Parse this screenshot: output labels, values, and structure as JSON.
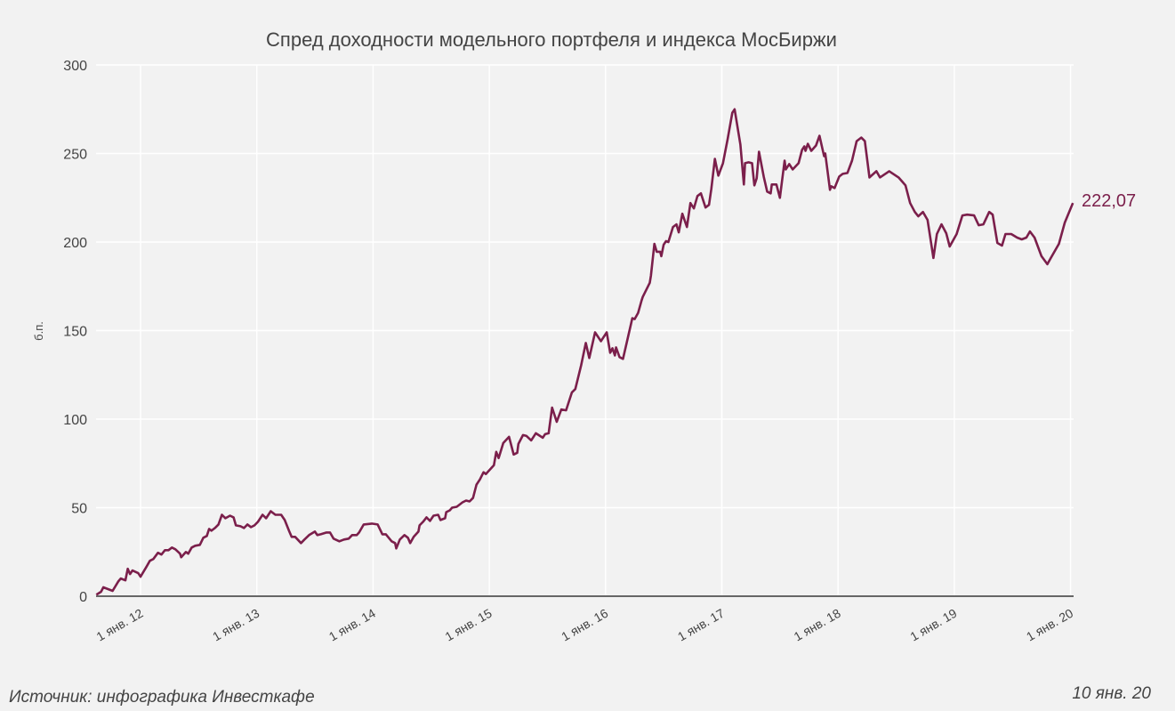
{
  "chart_data": {
    "type": "line",
    "title": "Спред доходности модельного портфеля и индекса МосБиржи",
    "xlabel": "",
    "ylabel": "б.п.",
    "ylim": [
      0,
      300
    ],
    "xlim": [
      2011.62,
      2020.02
    ],
    "yticks": [
      0,
      50,
      100,
      150,
      200,
      250,
      300
    ],
    "xticks": [
      {
        "value": 2012,
        "label": "1 янв. 12"
      },
      {
        "value": 2013,
        "label": "1 янв. 13"
      },
      {
        "value": 2014,
        "label": "1 янв. 14"
      },
      {
        "value": 2015,
        "label": "1 янв. 15"
      },
      {
        "value": 2016,
        "label": "1 янв. 16"
      },
      {
        "value": 2017,
        "label": "1 янв. 17"
      },
      {
        "value": 2018,
        "label": "1 янв. 18"
      },
      {
        "value": 2019,
        "label": "1 янв. 19"
      },
      {
        "value": 2020,
        "label": "1 янв. 20"
      }
    ],
    "grid": true,
    "series": [
      {
        "name": "Спред",
        "color": "#7b1f4b",
        "points": [
          [
            2011.62,
            0.8
          ],
          [
            2011.66,
            2.5
          ],
          [
            2011.68,
            5
          ],
          [
            2011.72,
            4
          ],
          [
            2011.76,
            3
          ],
          [
            2011.81,
            8.5
          ],
          [
            2011.83,
            10
          ],
          [
            2011.87,
            9
          ],
          [
            2011.89,
            15.5
          ],
          [
            2011.91,
            12.5
          ],
          [
            2011.93,
            14.5
          ],
          [
            2011.98,
            13
          ],
          [
            2012.0,
            11
          ],
          [
            2012.05,
            16.5
          ],
          [
            2012.08,
            20
          ],
          [
            2012.11,
            21
          ],
          [
            2012.15,
            24.5
          ],
          [
            2012.18,
            23.5
          ],
          [
            2012.21,
            26
          ],
          [
            2012.24,
            26
          ],
          [
            2012.27,
            27.5
          ],
          [
            2012.3,
            26.5
          ],
          [
            2012.34,
            24
          ],
          [
            2012.35,
            22
          ],
          [
            2012.39,
            25
          ],
          [
            2012.41,
            24
          ],
          [
            2012.44,
            27.5
          ],
          [
            2012.47,
            28.5
          ],
          [
            2012.51,
            29
          ],
          [
            2012.54,
            33
          ],
          [
            2012.57,
            34
          ],
          [
            2012.59,
            38
          ],
          [
            2012.61,
            37
          ],
          [
            2012.64,
            38.5
          ],
          [
            2012.67,
            40.5
          ],
          [
            2012.7,
            46
          ],
          [
            2012.73,
            44
          ],
          [
            2012.77,
            45.5
          ],
          [
            2012.8,
            44.5
          ],
          [
            2012.82,
            40
          ],
          [
            2012.86,
            39.5
          ],
          [
            2012.89,
            38.5
          ],
          [
            2012.92,
            40.5
          ],
          [
            2012.95,
            39
          ],
          [
            2012.98,
            40
          ],
          [
            2013.01,
            42
          ],
          [
            2013.05,
            46
          ],
          [
            2013.08,
            44
          ],
          [
            2013.12,
            48
          ],
          [
            2013.16,
            46
          ],
          [
            2013.21,
            46
          ],
          [
            2013.24,
            43
          ],
          [
            2013.28,
            36.5
          ],
          [
            2013.3,
            33.5
          ],
          [
            2013.33,
            33.5
          ],
          [
            2013.38,
            30
          ],
          [
            2013.41,
            32
          ],
          [
            2013.45,
            34.5
          ],
          [
            2013.5,
            36.5
          ],
          [
            2013.52,
            34.5
          ],
          [
            2013.55,
            35
          ],
          [
            2013.6,
            36
          ],
          [
            2013.63,
            36
          ],
          [
            2013.66,
            32.5
          ],
          [
            2013.71,
            31
          ],
          [
            2013.75,
            32
          ],
          [
            2013.79,
            32.5
          ],
          [
            2013.82,
            34.5
          ],
          [
            2013.86,
            34.5
          ],
          [
            2013.88,
            36
          ],
          [
            2013.92,
            40.5
          ],
          [
            2013.99,
            41
          ],
          [
            2014.04,
            40.5
          ],
          [
            2014.08,
            35
          ],
          [
            2014.11,
            35
          ],
          [
            2014.16,
            31
          ],
          [
            2014.19,
            30
          ],
          [
            2014.2,
            27
          ],
          [
            2014.23,
            32
          ],
          [
            2014.27,
            34.5
          ],
          [
            2014.3,
            33
          ],
          [
            2014.32,
            30
          ],
          [
            2014.35,
            33.5
          ],
          [
            2014.39,
            36.5
          ],
          [
            2014.4,
            40
          ],
          [
            2014.43,
            42
          ],
          [
            2014.46,
            44.5
          ],
          [
            2014.49,
            42.5
          ],
          [
            2014.52,
            45.5
          ],
          [
            2014.56,
            46
          ],
          [
            2014.58,
            43
          ],
          [
            2014.62,
            44
          ],
          [
            2014.63,
            47.5
          ],
          [
            2014.66,
            48.5
          ],
          [
            2014.68,
            50
          ],
          [
            2014.72,
            50.5
          ],
          [
            2014.77,
            53
          ],
          [
            2014.8,
            54
          ],
          [
            2014.83,
            53.5
          ],
          [
            2014.86,
            55.5
          ],
          [
            2014.89,
            63
          ],
          [
            2014.92,
            66
          ],
          [
            2014.95,
            70
          ],
          [
            2014.97,
            69
          ],
          [
            2015.04,
            74
          ],
          [
            2015.06,
            81.5
          ],
          [
            2015.08,
            78
          ],
          [
            2015.12,
            86.5
          ],
          [
            2015.17,
            90
          ],
          [
            2015.21,
            80
          ],
          [
            2015.24,
            81
          ],
          [
            2015.25,
            86
          ],
          [
            2015.29,
            91
          ],
          [
            2015.32,
            90.5
          ],
          [
            2015.36,
            88
          ],
          [
            2015.4,
            92
          ],
          [
            2015.46,
            89.5
          ],
          [
            2015.48,
            91.5
          ],
          [
            2015.51,
            92
          ],
          [
            2015.54,
            106.5
          ],
          [
            2015.58,
            98.5
          ],
          [
            2015.62,
            105.5
          ],
          [
            2015.66,
            105
          ],
          [
            2015.71,
            115
          ],
          [
            2015.74,
            117
          ],
          [
            2015.79,
            130.5
          ],
          [
            2015.83,
            143
          ],
          [
            2015.86,
            134.5
          ],
          [
            2015.91,
            149
          ],
          [
            2015.96,
            144
          ],
          [
            2016.01,
            149
          ],
          [
            2016.04,
            137.5
          ],
          [
            2016.06,
            140
          ],
          [
            2016.08,
            136
          ],
          [
            2016.09,
            140.5
          ],
          [
            2016.12,
            135
          ],
          [
            2016.15,
            134
          ],
          [
            2016.23,
            157
          ],
          [
            2016.25,
            156.5
          ],
          [
            2016.28,
            160
          ],
          [
            2016.31,
            167
          ],
          [
            2016.32,
            169
          ],
          [
            2016.38,
            177
          ],
          [
            2016.39,
            181
          ],
          [
            2016.42,
            199
          ],
          [
            2016.44,
            194.5
          ],
          [
            2016.47,
            194.5
          ],
          [
            2016.48,
            192
          ],
          [
            2016.5,
            198.5
          ],
          [
            2016.52,
            200.5
          ],
          [
            2016.54,
            200
          ],
          [
            2016.58,
            208.5
          ],
          [
            2016.61,
            210
          ],
          [
            2016.63,
            205.5
          ],
          [
            2016.66,
            216
          ],
          [
            2016.7,
            208.5
          ],
          [
            2016.73,
            222
          ],
          [
            2016.76,
            219
          ],
          [
            2016.79,
            226
          ],
          [
            2016.82,
            227.5
          ],
          [
            2016.86,
            219.5
          ],
          [
            2016.89,
            221
          ],
          [
            2016.91,
            230
          ],
          [
            2016.94,
            247
          ],
          [
            2016.97,
            237.5
          ],
          [
            2017.01,
            244.5
          ],
          [
            2017.05,
            258
          ],
          [
            2017.09,
            273
          ],
          [
            2017.11,
            275
          ],
          [
            2017.16,
            255
          ],
          [
            2017.19,
            232.5
          ],
          [
            2017.2,
            244.5
          ],
          [
            2017.23,
            245
          ],
          [
            2017.26,
            244.5
          ],
          [
            2017.28,
            232
          ],
          [
            2017.3,
            236
          ],
          [
            2017.32,
            251
          ],
          [
            2017.36,
            237
          ],
          [
            2017.39,
            228.5
          ],
          [
            2017.42,
            227.5
          ],
          [
            2017.43,
            232.5
          ],
          [
            2017.47,
            232.5
          ],
          [
            2017.5,
            225
          ],
          [
            2017.54,
            246
          ],
          [
            2017.55,
            241
          ],
          [
            2017.58,
            244
          ],
          [
            2017.61,
            241
          ],
          [
            2017.66,
            244.5
          ],
          [
            2017.69,
            252
          ],
          [
            2017.71,
            254
          ],
          [
            2017.72,
            251.5
          ],
          [
            2017.74,
            255.5
          ],
          [
            2017.77,
            251.5
          ],
          [
            2017.81,
            254.5
          ],
          [
            2017.84,
            260
          ],
          [
            2017.88,
            248.5
          ],
          [
            2017.89,
            250
          ],
          [
            2017.93,
            229.5
          ],
          [
            2017.94,
            231.5
          ],
          [
            2017.97,
            230.5
          ],
          [
            2018.01,
            237
          ],
          [
            2018.04,
            238.5
          ],
          [
            2018.08,
            239
          ],
          [
            2018.12,
            246
          ],
          [
            2018.16,
            257
          ],
          [
            2018.2,
            259
          ],
          [
            2018.23,
            257
          ],
          [
            2018.27,
            236.5
          ],
          [
            2018.33,
            240
          ],
          [
            2018.36,
            236.5
          ],
          [
            2018.44,
            240
          ],
          [
            2018.52,
            236.5
          ],
          [
            2018.58,
            232
          ],
          [
            2018.62,
            222
          ],
          [
            2018.66,
            217
          ],
          [
            2018.69,
            214.5
          ],
          [
            2018.73,
            217
          ],
          [
            2018.77,
            212.5
          ],
          [
            2018.82,
            191
          ],
          [
            2018.85,
            204.5
          ],
          [
            2018.89,
            210
          ],
          [
            2018.93,
            205
          ],
          [
            2018.96,
            197.5
          ],
          [
            2019.02,
            204.5
          ],
          [
            2019.07,
            215
          ],
          [
            2019.11,
            215.5
          ],
          [
            2019.17,
            215
          ],
          [
            2019.21,
            209.5
          ],
          [
            2019.25,
            210
          ],
          [
            2019.3,
            217
          ],
          [
            2019.33,
            215.5
          ],
          [
            2019.37,
            199.5
          ],
          [
            2019.41,
            198
          ],
          [
            2019.44,
            204.5
          ],
          [
            2019.49,
            204.5
          ],
          [
            2019.54,
            202.5
          ],
          [
            2019.58,
            201.5
          ],
          [
            2019.62,
            202.5
          ],
          [
            2019.65,
            206
          ],
          [
            2019.69,
            202.5
          ],
          [
            2019.75,
            192
          ],
          [
            2019.8,
            187.5
          ],
          [
            2019.83,
            191
          ],
          [
            2019.9,
            199
          ],
          [
            2019.95,
            211
          ],
          [
            2020.02,
            222.07
          ]
        ]
      }
    ],
    "last_value_label": "222,07",
    "colors": {
      "background": "#f2f2f2",
      "grid": "#ffffff",
      "axis": "#666666",
      "line": "#7b1f4b"
    }
  },
  "footer": {
    "source": "Источник: инфографика Инвесткафе",
    "date": "10 янв. 20"
  }
}
